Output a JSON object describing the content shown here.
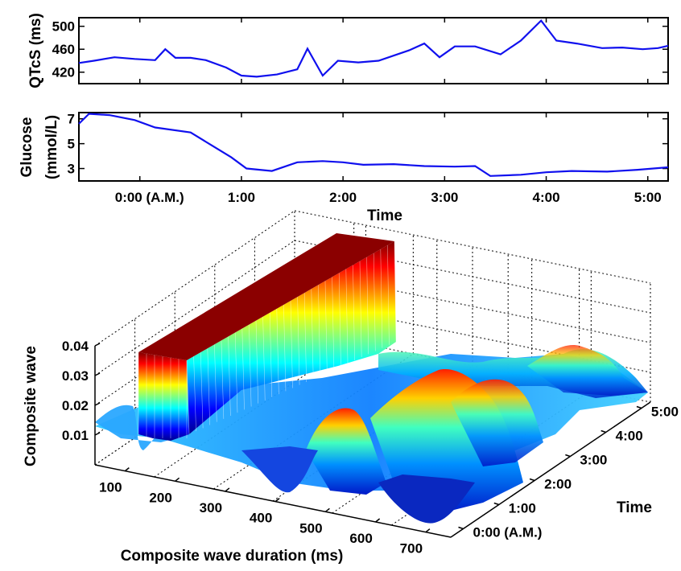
{
  "chart_data": [
    {
      "type": "line",
      "ylabel": "QTcS (ms)",
      "ylim": [
        400,
        515
      ],
      "xlim": [
        -0.6,
        5.2
      ],
      "yticks": [
        "420",
        "460",
        "500"
      ],
      "grid": false,
      "series": [
        {
          "color": "#1010ee",
          "x": [
            -0.6,
            -0.45,
            -0.25,
            -0.05,
            0.15,
            0.25,
            0.35,
            0.5,
            0.65,
            0.85,
            1.0,
            1.15,
            1.35,
            1.55,
            1.65,
            1.8,
            1.95,
            2.15,
            2.35,
            2.65,
            2.8,
            2.95,
            3.1,
            3.3,
            3.55,
            3.75,
            3.95,
            4.1,
            4.3,
            4.55,
            4.75,
            4.95,
            5.1,
            5.2
          ],
          "y": [
            436,
            440,
            446,
            443,
            441,
            460,
            445,
            445,
            441,
            428,
            414,
            412,
            416,
            425,
            461,
            414,
            440,
            437,
            440,
            458,
            470,
            446,
            465,
            465,
            451,
            475,
            510,
            475,
            470,
            462,
            463,
            460,
            462,
            466
          ]
        }
      ]
    },
    {
      "type": "line",
      "ylabel": "Glucose (mmol/L)",
      "ylim": [
        2.0,
        7.5
      ],
      "xlim": [
        -0.6,
        5.2
      ],
      "xlabel": "Time",
      "yticks": [
        "3",
        "5",
        "7"
      ],
      "xticks": [
        "0:00 (A.M.)",
        "1:00",
        "2:00",
        "3:00",
        "4:00",
        "5:00"
      ],
      "grid": false,
      "series": [
        {
          "color": "#1010ee",
          "x": [
            -0.6,
            -0.5,
            -0.3,
            -0.05,
            0.15,
            0.5,
            0.7,
            0.9,
            1.05,
            1.3,
            1.55,
            1.8,
            2.0,
            2.2,
            2.5,
            2.8,
            3.1,
            3.3,
            3.45,
            3.75,
            4.0,
            4.25,
            4.6,
            4.9,
            5.2
          ],
          "y": [
            6.6,
            7.4,
            7.3,
            6.9,
            6.3,
            5.9,
            4.9,
            3.9,
            3.0,
            2.8,
            3.5,
            3.6,
            3.5,
            3.3,
            3.35,
            3.2,
            3.15,
            3.2,
            2.4,
            2.5,
            2.7,
            2.8,
            2.75,
            2.9,
            3.1
          ]
        }
      ]
    },
    {
      "type": "surface",
      "xlabel": "Composite wave duration (ms)",
      "ylabel": "Time",
      "zlabel": "Composite wave",
      "xticks": [
        "100",
        "200",
        "300",
        "400",
        "500",
        "600",
        "700"
      ],
      "yticks": [
        "0:00 (A.M.)",
        "1:00",
        "2:00",
        "3:00",
        "4:00",
        "5:00"
      ],
      "zticks": [
        "0.01",
        "0.02",
        "0.03",
        "0.04"
      ],
      "zlim": [
        0,
        0.04
      ],
      "colormap": "jet",
      "grid": true
    }
  ]
}
